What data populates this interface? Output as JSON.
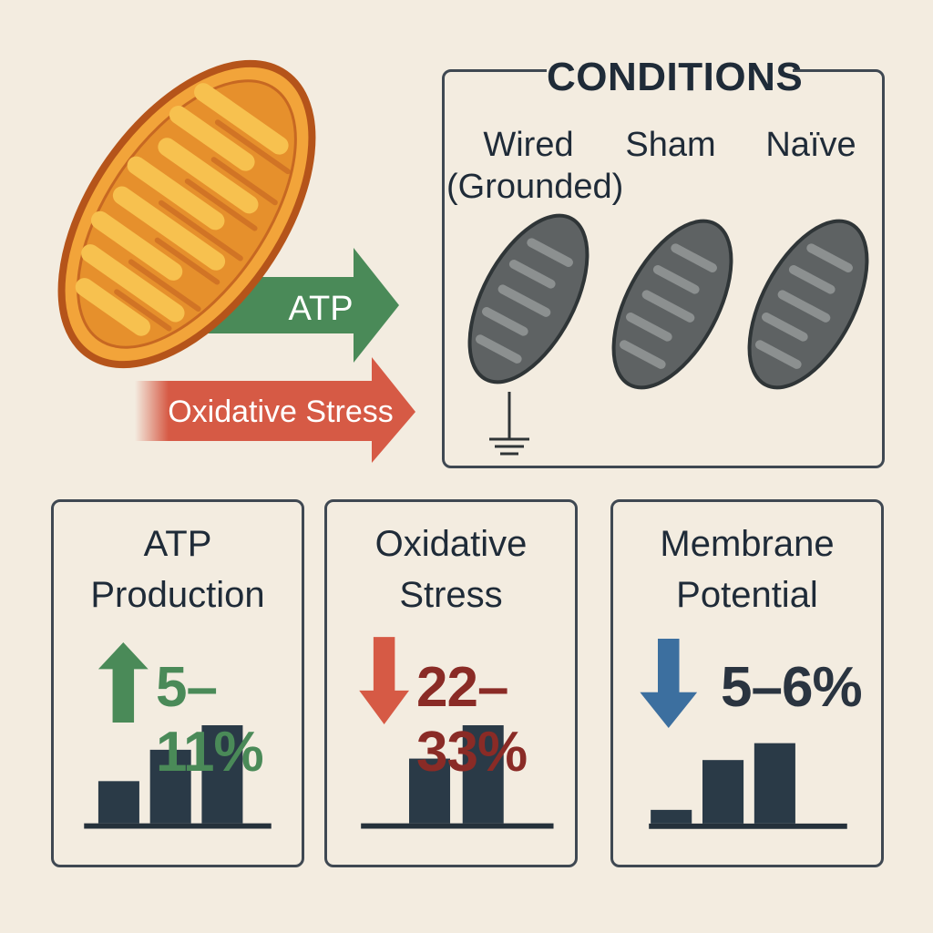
{
  "hero": {
    "arrow_atp_label": "ATP",
    "arrow_stress_label": "Oxidative Stress",
    "colors": {
      "mito_fill": "#f2a43a",
      "mito_edge": "#b5541a",
      "atp_arrow": "#4a8a58",
      "stress_arrow": "#d65a45"
    }
  },
  "conditions": {
    "title": "CONDITIONS",
    "groups": [
      {
        "label_line1": "Wired",
        "label_line2": "(Grounded)",
        "icon": "grounded-mitochondrion-icon"
      },
      {
        "label_line1": "Sham",
        "label_line2": "",
        "icon": "mitochondrion-icon"
      },
      {
        "label_line1": "Naïve",
        "label_line2": "",
        "icon": "mitochondrion-icon"
      }
    ]
  },
  "metrics": [
    {
      "title_line1": "ATP",
      "title_line2": "Production",
      "direction": "up",
      "value": "5–11%",
      "color": "#4a8a58",
      "bar_levels": [
        0.43,
        0.75,
        1.0
      ]
    },
    {
      "title_line1": "Oxidative",
      "title_line2": "Stress",
      "direction": "down",
      "value": "22–33%",
      "color": "#8a2b26",
      "arrow_color": "#d65a45",
      "bar_levels": [
        0.66,
        1.0
      ]
    },
    {
      "title_line1": "Membrane",
      "title_line2": "Potential",
      "direction": "down",
      "value": "5–6%",
      "color": "#2a3440",
      "arrow_color": "#3c6f9f",
      "bar_levels": [
        0.17,
        0.79,
        1.0
      ]
    }
  ]
}
